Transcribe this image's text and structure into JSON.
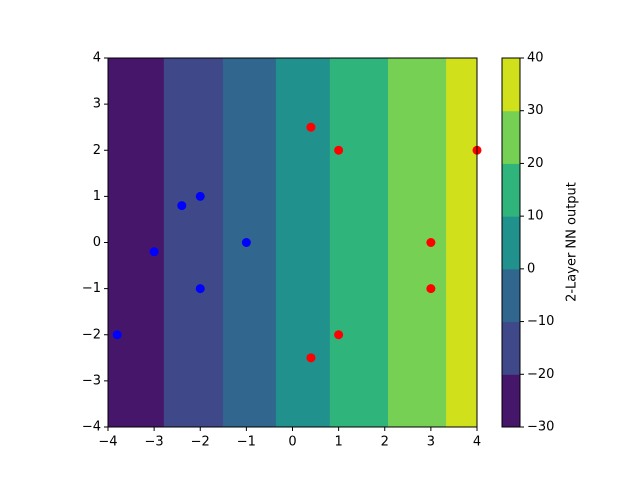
{
  "chart_data": {
    "type": "contour-scatter",
    "xlim": [
      -4,
      4
    ],
    "ylim": [
      -4,
      4
    ],
    "xticks": [
      {
        "value": -4,
        "label": "−4"
      },
      {
        "value": -3,
        "label": "−3"
      },
      {
        "value": -2,
        "label": "−2"
      },
      {
        "value": -1,
        "label": "−1"
      },
      0,
      1,
      2,
      3,
      4
    ],
    "yticks": [
      {
        "value": -4,
        "label": "−4"
      },
      {
        "value": -3,
        "label": "−3"
      },
      {
        "value": -2,
        "label": "−2"
      },
      {
        "value": -1,
        "label": "−1"
      },
      0,
      1,
      2,
      3,
      4
    ],
    "contour": {
      "levels": [
        -30,
        -20,
        -10,
        0,
        10,
        20,
        30,
        40
      ],
      "colors": [
        "#46166b",
        "#3f4889",
        "#31678e",
        "#20918c",
        "#2fb47c",
        "#76d054",
        "#d0e11c"
      ],
      "x_edges": [
        -4,
        -2.79,
        -1.51,
        -0.36,
        0.81,
        2.07,
        3.33,
        4
      ]
    },
    "colorbar": {
      "label": "2-Layer NN output",
      "ticks": [
        {
          "value": -30,
          "label": "−30"
        },
        {
          "value": -20,
          "label": "−20"
        },
        {
          "value": -10,
          "label": "−10"
        },
        0,
        10,
        20,
        30,
        40
      ]
    },
    "series": [
      {
        "color": "#0000ff",
        "x": [
          -3.8,
          -3,
          -2.4,
          -2,
          -2,
          -1
        ],
        "y": [
          -2,
          -0.2,
          0.8,
          1,
          -1,
          0
        ]
      },
      {
        "color": "#ff0000",
        "x": [
          0.4,
          1,
          4,
          3,
          3,
          1,
          0.4
        ],
        "y": [
          2.5,
          2,
          2,
          0,
          -1,
          -2,
          -2.5
        ]
      }
    ]
  }
}
